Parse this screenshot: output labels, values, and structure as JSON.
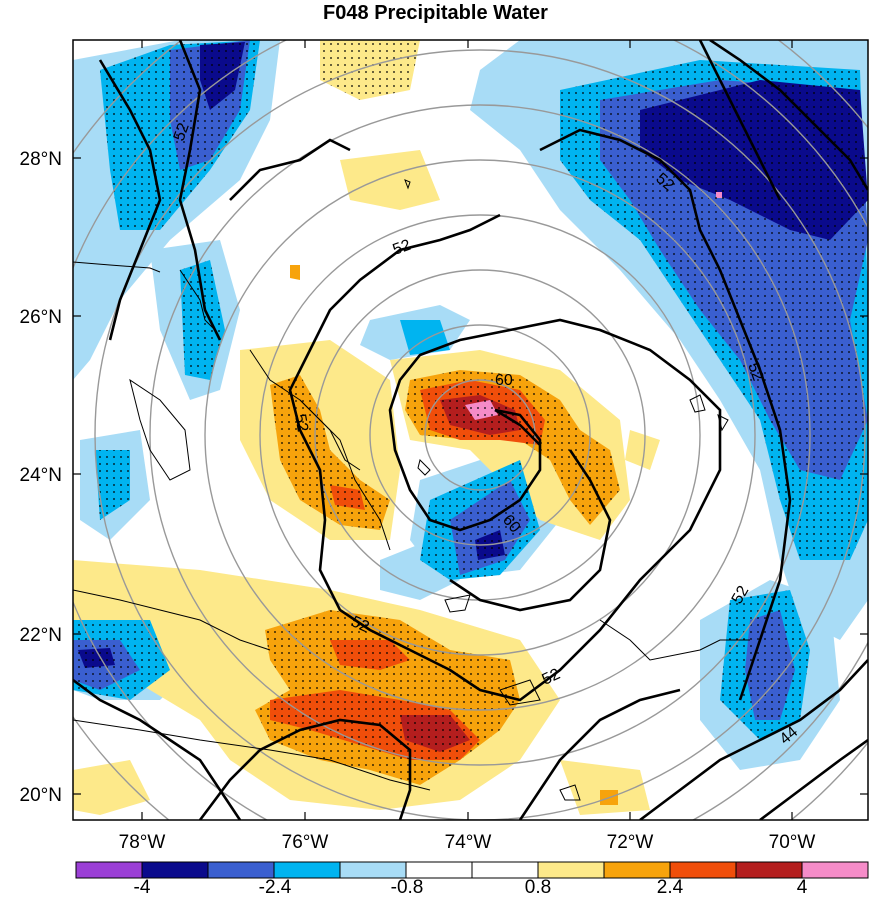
{
  "title": "F048 Precipitable Water",
  "lat_labels": [
    "28°N",
    "26°N",
    "24°N",
    "22°N",
    "20°N"
  ],
  "lon_labels": [
    "78°W",
    "76°W",
    "74°W",
    "72°W",
    "70°W"
  ],
  "colorbar": {
    "labels": [
      "-4",
      "-2.4",
      "-0.8",
      "0.8",
      "2.4",
      "4"
    ],
    "colors": [
      "#9b3fd6",
      "#0a0a8c",
      "#3a5fd0",
      "#00b4f0",
      "#a8dcf6",
      "#ffffff",
      "#ffffff",
      "#fde98a",
      "#f7a30c",
      "#f04e0a",
      "#b41e1e",
      "#f58cc8"
    ]
  },
  "contour_labels": [
    "52",
    "52",
    "52",
    "52",
    "52",
    "52",
    "60",
    "60",
    "52",
    "52",
    "44"
  ],
  "legend_colors": {
    "strong_pos": "#b41e1e",
    "pos": "#f04e0a",
    "mid_pos": "#f7a30c",
    "weak_pos": "#fde98a",
    "weak_neg": "#a8dcf6",
    "mid_neg": "#00b4f0",
    "neg": "#3a5fd0",
    "strong_neg": "#0a0a8c",
    "extreme_pos": "#f58cc8"
  }
}
